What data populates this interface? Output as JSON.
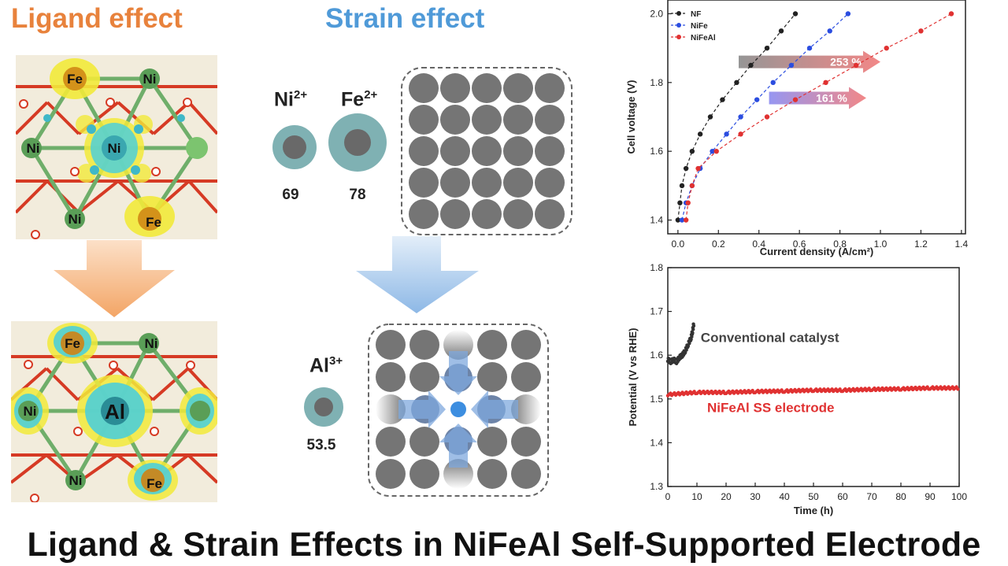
{
  "headers": {
    "ligand": "Ligand effect",
    "strain": "Strain effect"
  },
  "colors": {
    "ligand": "#e8823c",
    "strain": "#4f9ad8",
    "nf": "#222222",
    "nife": "#2b4de0",
    "nifeal": "#e03131"
  },
  "lattice_top": {
    "atoms": [
      "Fe",
      "Ni",
      "Ni",
      "Ni",
      "Ni",
      "Fe"
    ]
  },
  "lattice_bottom": {
    "atoms": [
      "Fe",
      "Ni",
      "Ni",
      "Al",
      "Ni",
      "Fe"
    ]
  },
  "ions": [
    {
      "label": "Ni",
      "charge": "2+",
      "radius": "69"
    },
    {
      "label": "Fe",
      "charge": "2+",
      "radius": "78"
    },
    {
      "label": "Al",
      "charge": "3+",
      "radius": "53.5"
    }
  ],
  "chart_data": [
    {
      "type": "line",
      "xlabel": "Current density (A/cm²)",
      "ylabel": "Cell voltage (V)",
      "xlim": [
        -0.05,
        1.42
      ],
      "ylim": [
        1.36,
        2.04
      ],
      "xticks": [
        "0.0",
        "0.2",
        "0.4",
        "0.6",
        "0.8",
        "1.0",
        "1.2",
        "1.4"
      ],
      "yticks": [
        "1.4",
        "1.6",
        "1.8",
        "2.0"
      ],
      "legend": "top-left",
      "series": [
        {
          "name": "NF",
          "color": "#222222",
          "x": [
            0.0,
            0.01,
            0.02,
            0.04,
            0.07,
            0.11,
            0.16,
            0.22,
            0.29,
            0.36,
            0.44,
            0.51,
            0.58
          ],
          "y": [
            1.4,
            1.45,
            1.5,
            1.55,
            1.6,
            1.65,
            1.7,
            1.75,
            1.8,
            1.85,
            1.9,
            1.95,
            2.0
          ]
        },
        {
          "name": "NiFe",
          "color": "#2b4de0",
          "x": [
            0.02,
            0.04,
            0.07,
            0.11,
            0.17,
            0.24,
            0.31,
            0.39,
            0.47,
            0.56,
            0.65,
            0.75,
            0.84
          ],
          "y": [
            1.4,
            1.45,
            1.5,
            1.55,
            1.6,
            1.65,
            1.7,
            1.75,
            1.8,
            1.85,
            1.9,
            1.95,
            2.0
          ]
        },
        {
          "name": "NiFeAl",
          "color": "#e03131",
          "x": [
            0.04,
            0.05,
            0.07,
            0.1,
            0.19,
            0.31,
            0.44,
            0.58,
            0.73,
            0.88,
            1.03,
            1.2,
            1.35
          ],
          "y": [
            1.4,
            1.45,
            1.5,
            1.55,
            1.6,
            1.65,
            1.7,
            1.75,
            1.8,
            1.85,
            1.9,
            1.95,
            2.0
          ]
        }
      ],
      "annotations": [
        "253 %",
        "161 %"
      ]
    },
    {
      "type": "line",
      "xlabel": "Time (h)",
      "ylabel": "Potential (V vs RHE)",
      "xlim": [
        0,
        100
      ],
      "ylim": [
        1.3,
        1.8
      ],
      "xticks": [
        "0",
        "10",
        "20",
        "30",
        "40",
        "50",
        "60",
        "70",
        "80",
        "90",
        "100"
      ],
      "yticks": [
        "1.3",
        "1.4",
        "1.5",
        "1.6",
        "1.7",
        "1.8"
      ],
      "series": [
        {
          "name": "Conventional catalyst",
          "color": "#333333",
          "x": [
            0,
            1,
            2,
            3,
            4,
            5,
            6,
            7,
            8,
            8.5,
            9
          ],
          "y": [
            1.59,
            1.585,
            1.59,
            1.585,
            1.595,
            1.6,
            1.61,
            1.625,
            1.64,
            1.655,
            1.675
          ]
        },
        {
          "name": "NiFeAl SS electrode",
          "color": "#e03131",
          "x": [
            0,
            10,
            20,
            30,
            40,
            50,
            60,
            70,
            80,
            90,
            100
          ],
          "y": [
            1.51,
            1.515,
            1.515,
            1.517,
            1.518,
            1.52,
            1.52,
            1.522,
            1.523,
            1.525,
            1.525
          ]
        }
      ]
    }
  ],
  "title": "Ligand & Strain Effects in NiFeAl Self-Supported Electrode"
}
